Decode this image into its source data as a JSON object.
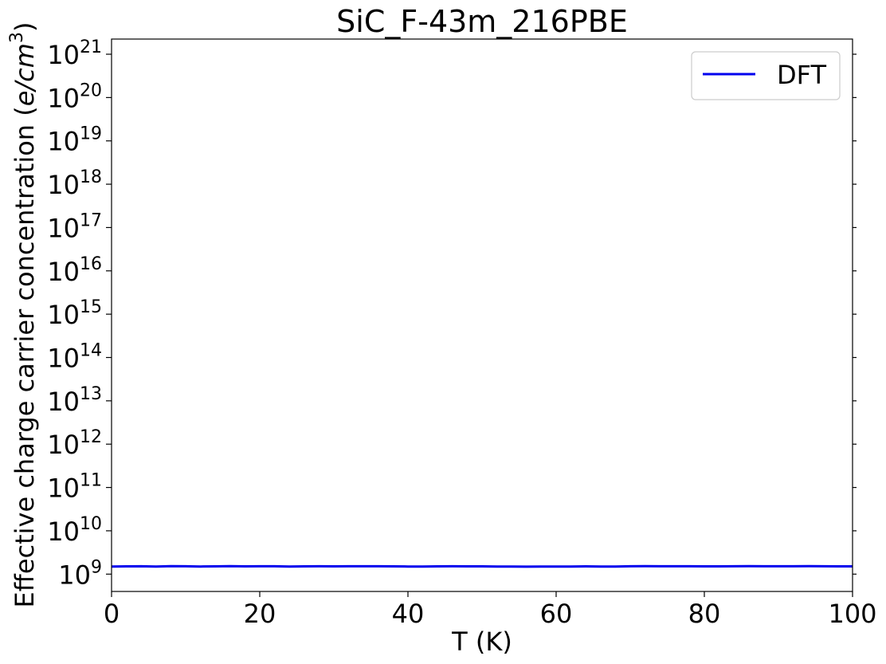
{
  "chart_data": {
    "type": "line",
    "title": "SiC_F-43m_216PBE",
    "xlabel": "T (K)",
    "ylabel_prefix": "Effective charge carrier concentration (",
    "ylabel_math": "e/cm",
    "ylabel_exp": "3",
    "ylabel_suffix": ")",
    "xlim": [
      0,
      100
    ],
    "ylim_log10": [
      8.6,
      21.35
    ],
    "yscale": "log",
    "grid": false,
    "legend_position": "top-right",
    "x_ticks": [
      "0",
      "20",
      "40",
      "60",
      "80",
      "100"
    ],
    "x_tick_values": [
      0,
      20,
      40,
      60,
      80,
      100
    ],
    "y_tick_exponents": [
      9,
      10,
      11,
      12,
      13,
      14,
      15,
      16,
      17,
      18,
      19,
      20,
      21
    ],
    "y_tick_base": "10",
    "series": [
      {
        "name": "DFT",
        "color": "#0000ee",
        "x": [
          0,
          2,
          4,
          6,
          8,
          10,
          12,
          14,
          16,
          18,
          20,
          22,
          24,
          26,
          28,
          30,
          32,
          34,
          36,
          38,
          40,
          42,
          44,
          46,
          48,
          50,
          52,
          54,
          56,
          58,
          60,
          62,
          64,
          66,
          68,
          70,
          72,
          74,
          76,
          78,
          80,
          82,
          84,
          86,
          88,
          90,
          92,
          94,
          96,
          98,
          100
        ],
        "y": [
          1500000000.0,
          1510000000.0,
          1520000000.0,
          1500000000.0,
          1530000000.0,
          1520000000.0,
          1500000000.0,
          1510000000.0,
          1530000000.0,
          1510000000.0,
          1520000000.0,
          1520000000.0,
          1500000000.0,
          1510000000.0,
          1520000000.0,
          1510000000.0,
          1520000000.0,
          1520000000.0,
          1520000000.0,
          1510000000.0,
          1500000000.0,
          1500000000.0,
          1510000000.0,
          1520000000.0,
          1510000000.0,
          1510000000.0,
          1500000000.0,
          1500000000.0,
          1490000000.0,
          1500000000.0,
          1500000000.0,
          1500000000.0,
          1510000000.0,
          1500000000.0,
          1500000000.0,
          1520000000.0,
          1530000000.0,
          1520000000.0,
          1520000000.0,
          1520000000.0,
          1510000000.0,
          1510000000.0,
          1520000000.0,
          1530000000.0,
          1520000000.0,
          1520000000.0,
          1520000000.0,
          1530000000.0,
          1520000000.0,
          1510000000.0,
          1510000000.0
        ]
      }
    ]
  }
}
